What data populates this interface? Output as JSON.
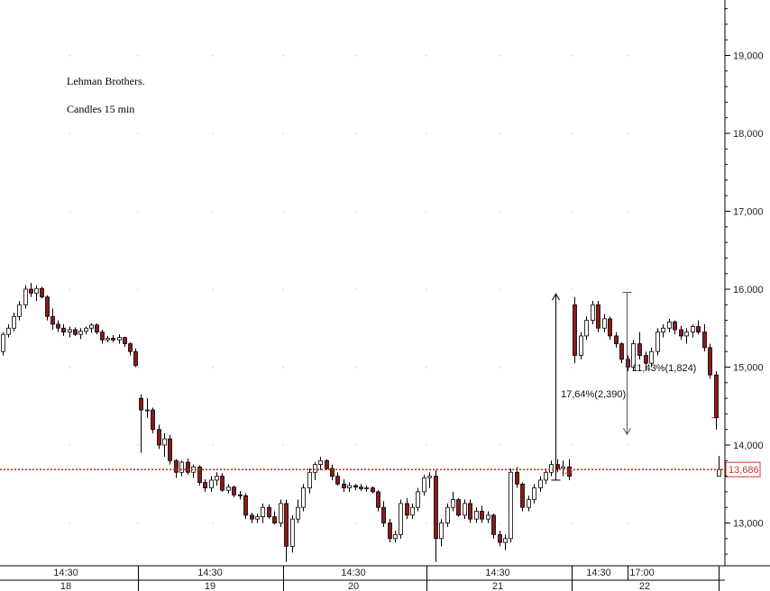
{
  "chart_data": {
    "type": "candlestick",
    "title": "Lehman Brothers.",
    "subtitle": "Candles 15 min",
    "y_axis": {
      "ticks": [
        13000,
        14000,
        15000,
        16000,
        17000,
        18000,
        19000
      ],
      "tick_labels": [
        "13,000",
        "14,000",
        "15,000",
        "16,000",
        "17,000",
        "18,000",
        "19,000"
      ],
      "ylim": [
        12500,
        19700
      ],
      "position": "right"
    },
    "x_axis": {
      "time_labels": [
        "14:30",
        "14:30",
        "14:30",
        "14:30",
        "14:30",
        "17:00"
      ],
      "day_labels": [
        "18",
        "19",
        "20",
        "21",
        "22"
      ]
    },
    "last_price": {
      "value": 13686,
      "label": "13,686",
      "color": "#c0392b"
    },
    "annotations": [
      {
        "label": "17,64%(2,390)",
        "from": 13550,
        "to": 15940
      },
      {
        "label": "11,43%(1,824)",
        "from": 15960,
        "to": 14136
      }
    ],
    "colors": {
      "up": "#ffffff",
      "down": "#8b1a1a",
      "wick": "#000000",
      "grid": "#c8c8c8"
    },
    "days": [
      {
        "day": "18",
        "candles": [
          [
            15200,
            15450,
            15150,
            15420
          ],
          [
            15420,
            15550,
            15380,
            15500
          ],
          [
            15500,
            15700,
            15460,
            15650
          ],
          [
            15650,
            15850,
            15600,
            15800
          ],
          [
            15800,
            16050,
            15750,
            16000
          ],
          [
            16000,
            16080,
            15900,
            15950
          ],
          [
            15950,
            16050,
            15850,
            16010
          ],
          [
            16010,
            16030,
            15880,
            15900
          ],
          [
            15900,
            15920,
            15600,
            15650
          ],
          [
            15650,
            15750,
            15480,
            15550
          ],
          [
            15550,
            15600,
            15450,
            15500
          ],
          [
            15500,
            15550,
            15400,
            15450
          ],
          [
            15450,
            15520,
            15380,
            15480
          ],
          [
            15480,
            15510,
            15400,
            15420
          ],
          [
            15420,
            15500,
            15360,
            15460
          ],
          [
            15460,
            15520,
            15420,
            15500
          ],
          [
            15500,
            15560,
            15440,
            15540
          ],
          [
            15540,
            15560,
            15420,
            15450
          ],
          [
            15450,
            15480,
            15300,
            15350
          ],
          [
            15350,
            15400,
            15320,
            15370
          ],
          [
            15370,
            15410,
            15320,
            15350
          ],
          [
            15350,
            15420,
            15300,
            15380
          ],
          [
            15380,
            15390,
            15260,
            15300
          ],
          [
            15300,
            15320,
            15150,
            15200
          ],
          [
            15200,
            15240,
            15000,
            15020
          ]
        ]
      },
      {
        "day": "19",
        "candles": [
          [
            14600,
            14650,
            13900,
            14450
          ],
          [
            14450,
            14600,
            14350,
            14450
          ],
          [
            14450,
            14480,
            14150,
            14200
          ],
          [
            14200,
            14260,
            13950,
            14000
          ],
          [
            14000,
            14150,
            13850,
            14080
          ],
          [
            14080,
            14130,
            13750,
            13800
          ],
          [
            13800,
            13820,
            13580,
            13650
          ],
          [
            13650,
            13800,
            13600,
            13780
          ],
          [
            13780,
            13830,
            13620,
            13650
          ],
          [
            13650,
            13750,
            13580,
            13720
          ],
          [
            13720,
            13740,
            13480,
            13520
          ],
          [
            13520,
            13560,
            13400,
            13450
          ],
          [
            13450,
            13600,
            13400,
            13550
          ],
          [
            13550,
            13650,
            13480,
            13600
          ],
          [
            13600,
            13640,
            13400,
            13420
          ],
          [
            13420,
            13500,
            13380,
            13460
          ],
          [
            13460,
            13480,
            13330,
            13360
          ],
          [
            13360,
            13410,
            13300,
            13350
          ],
          [
            13350,
            13380,
            13050,
            13100
          ],
          [
            13100,
            13130,
            13000,
            13050
          ],
          [
            13050,
            13120,
            13000,
            13080
          ],
          [
            13080,
            13250,
            13000,
            13200
          ],
          [
            13200,
            13240,
            13050,
            13080
          ],
          [
            13080,
            13150,
            12980,
            13000
          ],
          [
            13000,
            13300,
            12950,
            13250
          ]
        ]
      },
      {
        "day": "20",
        "candles": [
          [
            13250,
            13300,
            12500,
            12700
          ],
          [
            12700,
            13100,
            12620,
            13050
          ],
          [
            13050,
            13300,
            13000,
            13200
          ],
          [
            13200,
            13500,
            13150,
            13450
          ],
          [
            13450,
            13700,
            13380,
            13650
          ],
          [
            13650,
            13780,
            13550,
            13750
          ],
          [
            13750,
            13850,
            13680,
            13800
          ],
          [
            13800,
            13820,
            13680,
            13700
          ],
          [
            13700,
            13750,
            13550,
            13600
          ],
          [
            13600,
            13650,
            13480,
            13500
          ],
          [
            13500,
            13560,
            13400,
            13450
          ],
          [
            13450,
            13520,
            13400,
            13480
          ],
          [
            13480,
            13500,
            13420,
            13460
          ],
          [
            13460,
            13500,
            13410,
            13440
          ],
          [
            13440,
            13480,
            13400,
            13450
          ],
          [
            13450,
            13470,
            13380,
            13400
          ],
          [
            13400,
            13420,
            13150,
            13200
          ],
          [
            13200,
            13280,
            12950,
            13000
          ],
          [
            13000,
            13050,
            12750,
            12800
          ],
          [
            12800,
            12900,
            12750,
            12850
          ],
          [
            12850,
            13300,
            12800,
            13250
          ],
          [
            13250,
            13320,
            13050,
            13100
          ],
          [
            13100,
            13250,
            13050,
            13200
          ],
          [
            13200,
            13450,
            13150,
            13400
          ],
          [
            13400,
            13620,
            13350,
            13580
          ]
        ]
      },
      {
        "day": "21",
        "candles": [
          [
            13580,
            13650,
            13450,
            13600
          ],
          [
            13600,
            13680,
            12500,
            12800
          ],
          [
            12800,
            13050,
            12700,
            13000
          ],
          [
            13000,
            13250,
            12950,
            13200
          ],
          [
            13200,
            13400,
            13150,
            13300
          ],
          [
            13300,
            13320,
            13080,
            13100
          ],
          [
            13100,
            13300,
            13050,
            13250
          ],
          [
            13250,
            13300,
            13000,
            13050
          ],
          [
            13050,
            13200,
            13000,
            13150
          ],
          [
            13150,
            13220,
            13000,
            13050
          ],
          [
            13050,
            13150,
            13000,
            13100
          ],
          [
            13100,
            13120,
            12800,
            12850
          ],
          [
            12850,
            12900,
            12700,
            12750
          ],
          [
            12750,
            12850,
            12650,
            12800
          ],
          [
            12800,
            13700,
            12750,
            13650
          ],
          [
            13650,
            13720,
            13450,
            13500
          ],
          [
            13500,
            13520,
            13150,
            13200
          ],
          [
            13200,
            13350,
            13150,
            13300
          ],
          [
            13300,
            13500,
            13250,
            13450
          ],
          [
            13450,
            13600,
            13400,
            13550
          ],
          [
            13550,
            13700,
            13500,
            13650
          ],
          [
            13650,
            13800,
            13600,
            13750
          ],
          [
            13750,
            13820,
            13650,
            13700
          ],
          [
            13700,
            13800,
            13600,
            13720
          ],
          [
            13720,
            13820,
            13550,
            13600
          ]
        ]
      },
      {
        "day": "22",
        "candles": [
          [
            15800,
            15900,
            15050,
            15150
          ],
          [
            15150,
            15450,
            15100,
            15400
          ],
          [
            15400,
            15650,
            15350,
            15600
          ],
          [
            15600,
            15850,
            15550,
            15800
          ],
          [
            15800,
            15850,
            15450,
            15500
          ],
          [
            15500,
            15680,
            15450,
            15620
          ],
          [
            15620,
            15650,
            15350,
            15400
          ],
          [
            15400,
            15450,
            15250,
            15300
          ],
          [
            15300,
            15320,
            15050,
            15100
          ],
          [
            15100,
            15150,
            14950,
            15000
          ],
          [
            15000,
            15350,
            14950,
            15300
          ],
          [
            15300,
            15450,
            15100,
            15150
          ],
          [
            15150,
            15200,
            14950,
            15050
          ],
          [
            15050,
            15250,
            15000,
            15200
          ],
          [
            15200,
            15500,
            15150,
            15450
          ],
          [
            15450,
            15550,
            15380,
            15500
          ],
          [
            15500,
            15620,
            15450,
            15580
          ],
          [
            15580,
            15600,
            15420,
            15480
          ],
          [
            15480,
            15530,
            15350,
            15400
          ],
          [
            15400,
            15500,
            15300,
            15450
          ],
          [
            15450,
            15550,
            15380,
            15520
          ],
          [
            15520,
            15600,
            15420,
            15450
          ],
          [
            15450,
            15550,
            15200,
            15250
          ],
          [
            15250,
            15300,
            14850,
            14900
          ],
          [
            14900,
            14950,
            14200,
            14350
          ]
        ]
      }
    ],
    "last_candle": [
      13600,
      13860,
      13620,
      13686
    ]
  }
}
